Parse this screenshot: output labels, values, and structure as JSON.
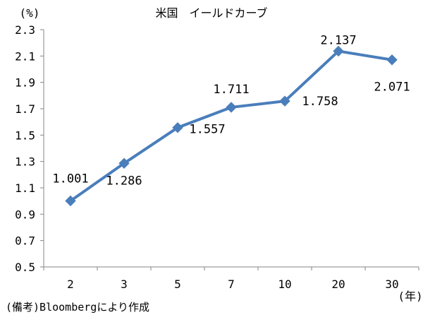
{
  "chart_data": {
    "type": "line",
    "title": "米国　イールドカーブ",
    "y_unit_label": "(%)",
    "x_unit_label": "(年)",
    "categories": [
      "2",
      "3",
      "5",
      "7",
      "10",
      "20",
      "30"
    ],
    "series": [
      {
        "values": [
          1.001,
          1.286,
          1.557,
          1.711,
          1.758,
          2.137,
          2.071
        ]
      }
    ],
    "data_labels": [
      "1.001",
      "1.286",
      "1.557",
      "1.711",
      "1.758",
      "2.137",
      "2.071"
    ],
    "ylim": [
      0.5,
      2.3
    ],
    "yticks": [
      "2.3",
      "2.1",
      "1.9",
      "1.7",
      "1.5",
      "1.3",
      "1.1",
      "0.9",
      "0.7",
      "0.5"
    ],
    "grid": false,
    "legend": "none",
    "line_color": "#4a7ebb",
    "marker": "diamond"
  },
  "source_note": "(備考)Bloombergにより作成"
}
